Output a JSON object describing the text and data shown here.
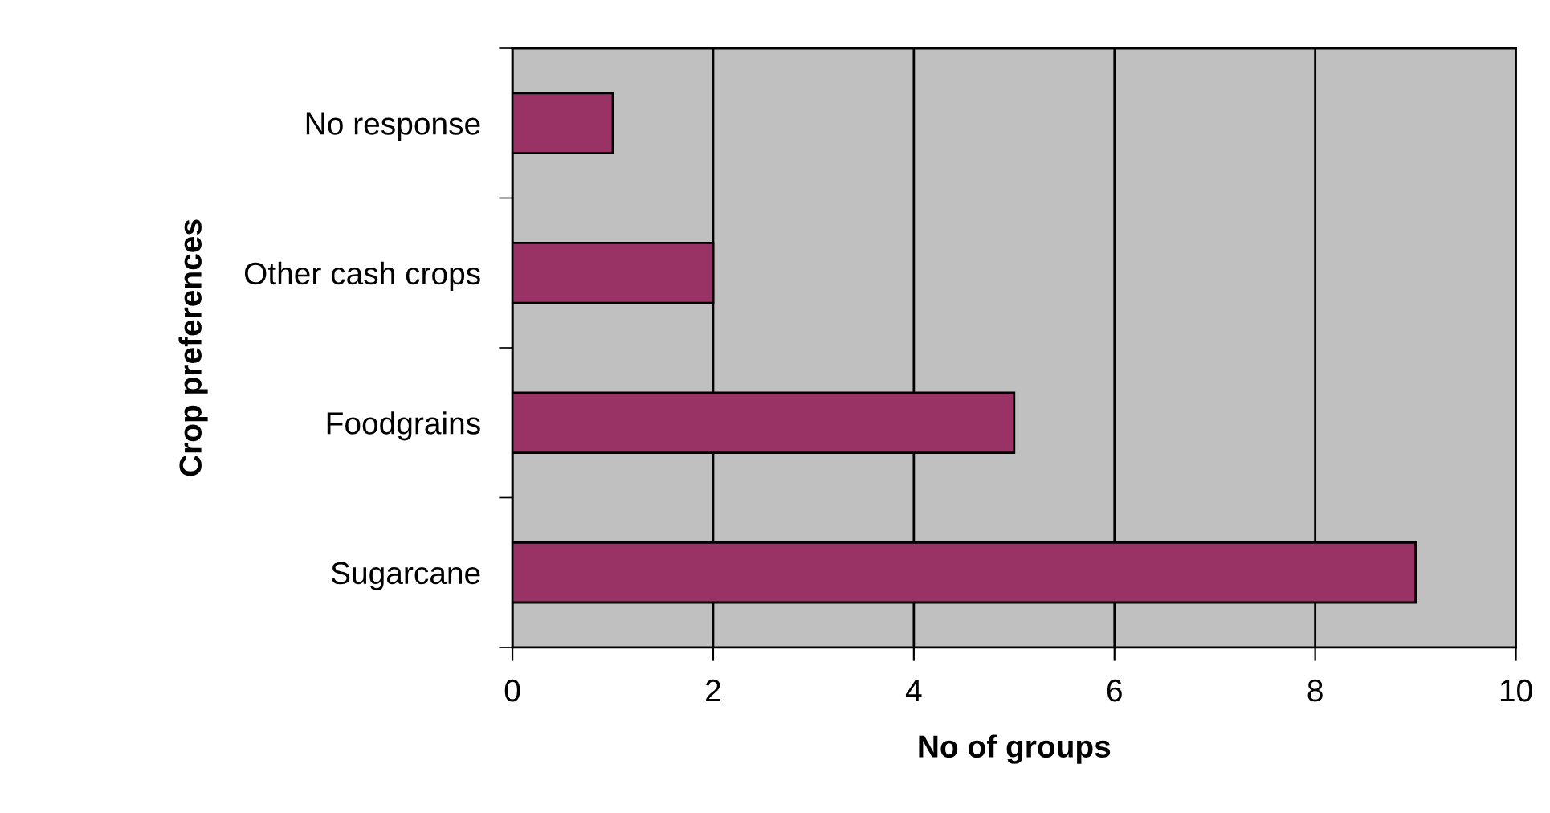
{
  "chart_data": {
    "type": "bar",
    "orientation": "horizontal",
    "categories": [
      "No response",
      "Other cash crops",
      "Foodgrains",
      "Sugarcane"
    ],
    "values": [
      1,
      2,
      5,
      9
    ],
    "color": "#993366",
    "xlim": [
      0,
      10
    ],
    "xticks": [
      0,
      2,
      4,
      6,
      8,
      10
    ],
    "xlabel": "No of groups",
    "ylabel": "Crop preferences",
    "grid": "x",
    "legend": false
  }
}
